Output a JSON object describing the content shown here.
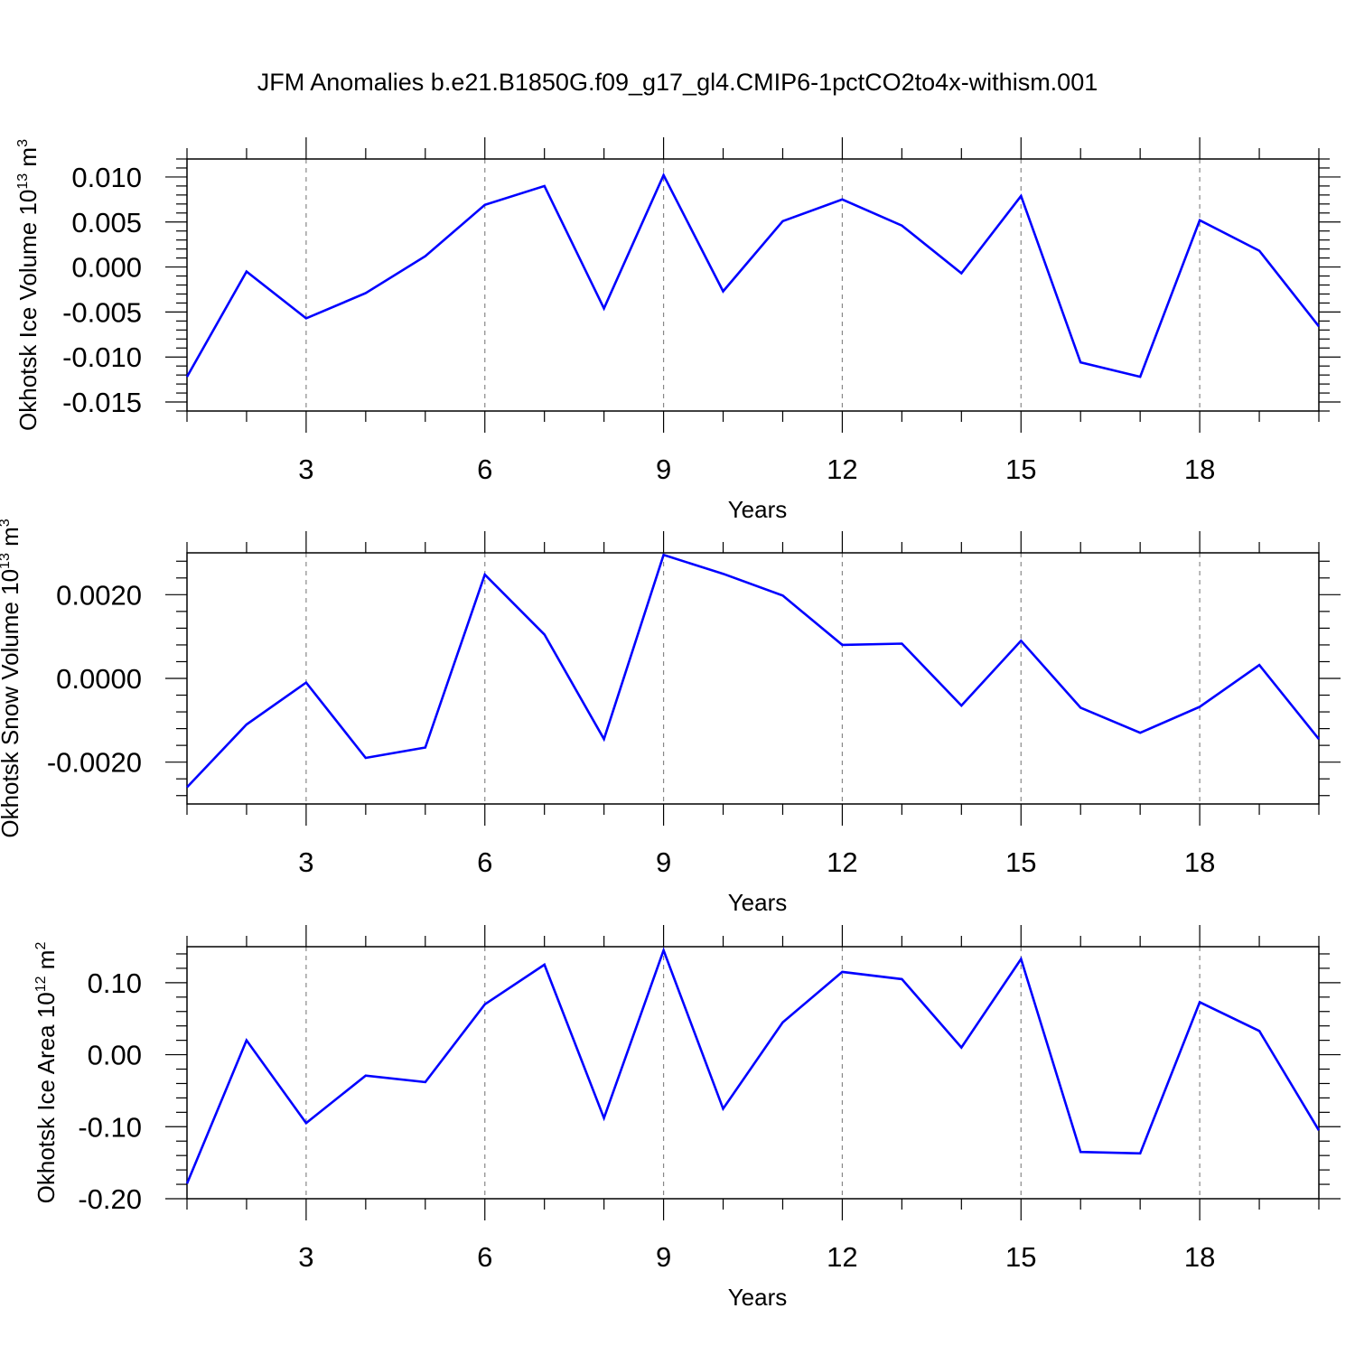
{
  "figure": {
    "title": "JFM Anomalies b.e21.B1850G.f09_g17_gl4.CMIP6-1pctCO2to4x-withism.001"
  },
  "chart_data": [
    {
      "type": "line",
      "title": "",
      "xlabel": "Years",
      "ylabel": {
        "prefix": "Okhotsk Ice Volume 10",
        "exp": "13",
        "unit": " m",
        "unit_exp": "3"
      },
      "xlim": [
        1,
        20
      ],
      "ylim": [
        -0.016,
        0.012
      ],
      "xticks": [
        3,
        6,
        9,
        12,
        15,
        18
      ],
      "xtick_labels": [
        "3",
        "6",
        "9",
        "12",
        "15",
        "18"
      ],
      "yticks": [
        -0.015,
        -0.01,
        -0.005,
        0.0,
        0.005,
        0.01
      ],
      "ytick_labels": [
        "-0.015",
        "-0.010",
        "-0.005",
        "0.000",
        "0.005",
        "0.010"
      ],
      "grid": "vertical dashed at major x ticks",
      "color": "#0000ff",
      "series": [
        {
          "x": [
            1,
            2,
            3,
            4,
            5,
            6,
            7,
            8,
            9,
            10,
            11,
            12,
            13,
            14,
            15,
            16,
            17,
            18,
            19,
            20
          ],
          "values": [
            -0.0122,
            -0.0005,
            -0.0057,
            -0.0029,
            0.0012,
            0.0069,
            0.009,
            -0.0046,
            0.0102,
            -0.0027,
            0.0051,
            0.0075,
            0.0046,
            -0.0007,
            0.0079,
            -0.0106,
            -0.0122,
            0.0052,
            0.0018,
            -0.0066
          ]
        }
      ]
    },
    {
      "type": "line",
      "title": "",
      "xlabel": "Years",
      "ylabel": {
        "prefix": "Okhotsk Snow Volume 10",
        "exp": "13",
        "unit": " m",
        "unit_exp": "3"
      },
      "xlim": [
        1,
        20
      ],
      "ylim": [
        -0.003,
        0.003
      ],
      "xticks": [
        3,
        6,
        9,
        12,
        15,
        18
      ],
      "xtick_labels": [
        "3",
        "6",
        "9",
        "12",
        "15",
        "18"
      ],
      "yticks": [
        -0.002,
        0.0,
        0.002
      ],
      "ytick_labels": [
        "-0.0020",
        "0.0000",
        "0.0020"
      ],
      "grid": "vertical dashed at major x ticks",
      "color": "#0000ff",
      "series": [
        {
          "x": [
            1,
            2,
            3,
            4,
            5,
            6,
            7,
            8,
            9,
            10,
            11,
            12,
            13,
            14,
            15,
            16,
            17,
            18,
            19,
            20
          ],
          "values": [
            -0.0026,
            -0.0011,
            -0.0001,
            -0.0019,
            -0.00165,
            0.00248,
            0.00105,
            -0.00145,
            0.00295,
            0.0025,
            0.00198,
            0.0008,
            0.00083,
            -0.00065,
            0.0009,
            -0.0007,
            -0.0013,
            -0.00068,
            0.00032,
            -0.00145
          ]
        }
      ]
    },
    {
      "type": "line",
      "title": "",
      "xlabel": "Years",
      "ylabel": {
        "prefix": "Okhotsk Ice Area 10",
        "exp": "12",
        "unit": " m",
        "unit_exp": "2"
      },
      "xlim": [
        1,
        20
      ],
      "ylim": [
        -0.2,
        0.15
      ],
      "xticks": [
        3,
        6,
        9,
        12,
        15,
        18
      ],
      "xtick_labels": [
        "3",
        "6",
        "9",
        "12",
        "15",
        "18"
      ],
      "yticks": [
        -0.2,
        -0.1,
        0.0,
        0.1
      ],
      "ytick_labels": [
        "-0.20",
        "-0.10",
        "0.00",
        "0.10"
      ],
      "grid": "vertical dashed at major x ticks",
      "color": "#0000ff",
      "series": [
        {
          "x": [
            1,
            2,
            3,
            4,
            5,
            6,
            7,
            8,
            9,
            10,
            11,
            12,
            13,
            14,
            15,
            16,
            17,
            18,
            19,
            20
          ],
          "values": [
            -0.179,
            0.02,
            -0.095,
            -0.029,
            -0.038,
            0.07,
            0.125,
            -0.088,
            0.145,
            -0.075,
            0.045,
            0.115,
            0.105,
            0.01,
            0.133,
            -0.135,
            -0.137,
            0.073,
            0.033,
            -0.105
          ]
        }
      ]
    }
  ]
}
